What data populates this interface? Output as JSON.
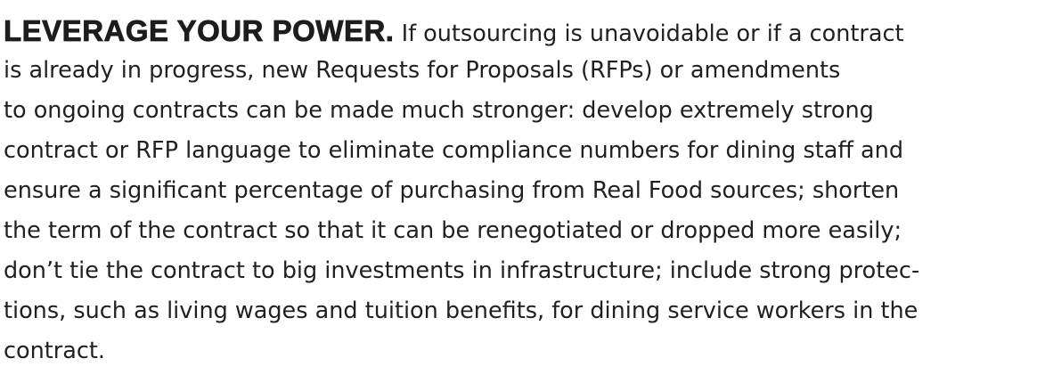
{
  "heading": "LEVERAGE YOUR POWER.",
  "lines": [
    "If outsourcing is unavoidable or if a contract",
    "is already in progress, new Requests for Proposals (RFPs) or amendments",
    "to ongoing contracts can be made much stronger: develop extremely strong",
    "contract or RFP language to eliminate compliance numbers for dining staff and",
    "ensure a significant percentage of purchasing from Real Food sources; shorten",
    "the term of the contract so that it can be renegotiated or dropped more easily;",
    "don’t tie the contract to big investments in infrastructure; include strong protec-",
    "tions, such as living wages and tuition benefits, for dining service workers in the",
    "contract."
  ]
}
